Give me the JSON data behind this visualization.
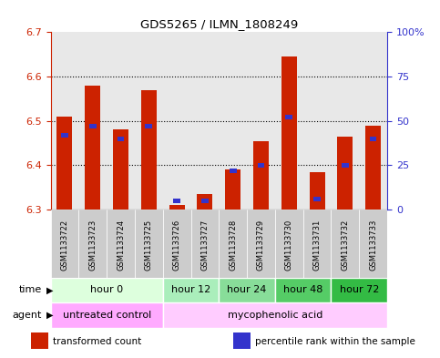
{
  "title": "GDS5265 / ILMN_1808249",
  "samples": [
    "GSM1133722",
    "GSM1133723",
    "GSM1133724",
    "GSM1133725",
    "GSM1133726",
    "GSM1133727",
    "GSM1133728",
    "GSM1133729",
    "GSM1133730",
    "GSM1133731",
    "GSM1133732",
    "GSM1133733"
  ],
  "transformed_count": [
    6.51,
    6.58,
    6.48,
    6.57,
    6.31,
    6.335,
    6.39,
    6.455,
    6.645,
    6.385,
    6.465,
    6.49
  ],
  "percentile_rank": [
    42,
    47,
    40,
    47,
    5,
    5,
    22,
    25,
    52,
    6,
    25,
    40
  ],
  "ylim_left": [
    6.3,
    6.7
  ],
  "ylim_right": [
    0,
    100
  ],
  "yticks_left": [
    6.3,
    6.4,
    6.5,
    6.6,
    6.7
  ],
  "yticks_right": [
    0,
    25,
    50,
    75,
    100
  ],
  "ytick_labels_right": [
    "0",
    "25",
    "50",
    "75",
    "100%"
  ],
  "bar_color": "#cc2200",
  "dot_color": "#3333cc",
  "background_color": "#ffffff",
  "sample_box_color": "#cccccc",
  "time_groups": [
    {
      "label": "hour 0",
      "start": 0,
      "end": 4,
      "color": "#ddffdd"
    },
    {
      "label": "hour 12",
      "start": 4,
      "end": 6,
      "color": "#aaeebb"
    },
    {
      "label": "hour 24",
      "start": 6,
      "end": 8,
      "color": "#88dd99"
    },
    {
      "label": "hour 48",
      "start": 8,
      "end": 10,
      "color": "#55cc66"
    },
    {
      "label": "hour 72",
      "start": 10,
      "end": 12,
      "color": "#33bb44"
    }
  ],
  "agent_groups": [
    {
      "label": "untreated control",
      "start": 0,
      "end": 4,
      "color": "#ffaaff"
    },
    {
      "label": "mycophenolic acid",
      "start": 4,
      "end": 12,
      "color": "#ffccff"
    }
  ],
  "legend_items": [
    {
      "color": "#cc2200",
      "label": "transformed count"
    },
    {
      "color": "#3333cc",
      "label": "percentile rank within the sample"
    }
  ],
  "left_axis_color": "#cc2200",
  "right_axis_color": "#3333cc"
}
